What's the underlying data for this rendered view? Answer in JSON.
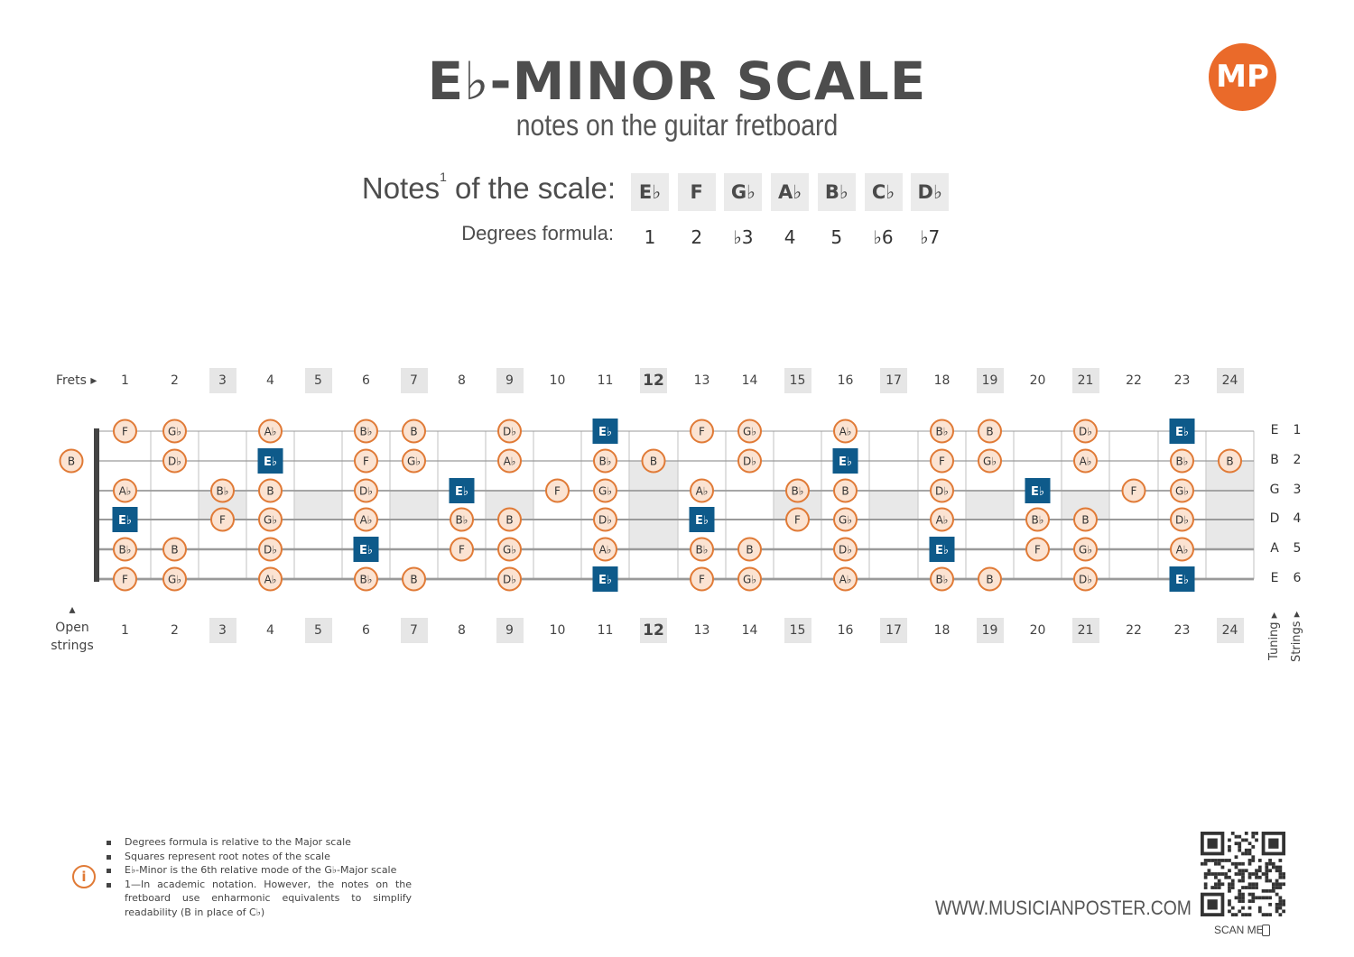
{
  "title": "E♭-MINOR SCALE",
  "subtitle": "notes on the guitar fretboard",
  "logo": "MP",
  "notes_label": "Notes",
  "notes_label_sup": "1",
  "notes_label_rest": " of the scale:",
  "degrees_label": "Degrees formula:",
  "scale_notes": [
    "E♭",
    "F",
    "G♭",
    "A♭",
    "B♭",
    "C♭",
    "D♭"
  ],
  "degrees": [
    "1",
    "2",
    "♭3",
    "4",
    "5",
    "♭6",
    "♭7"
  ],
  "frets_label": "Frets ▸",
  "open_strings_label": [
    "▴",
    "Open",
    "strings"
  ],
  "fret_numbers": [
    "1",
    "2",
    "3",
    "4",
    "5",
    "6",
    "7",
    "8",
    "9",
    "10",
    "11",
    "12",
    "13",
    "14",
    "15",
    "16",
    "17",
    "18",
    "19",
    "20",
    "21",
    "22",
    "23",
    "24"
  ],
  "highlighted_frets": [
    3,
    5,
    7,
    9,
    12,
    15,
    17,
    19,
    21,
    24
  ],
  "bold_fret": 12,
  "tuning": [
    "E",
    "B",
    "G",
    "D",
    "A",
    "E"
  ],
  "string_numbers": [
    "1",
    "2",
    "3",
    "4",
    "5",
    "6"
  ],
  "tuning_label": "Tuning ▸",
  "strings_label": "Strings ▸",
  "fretboard": [
    {
      "string": 1,
      "notes": {
        "1": "F",
        "2": "Gb",
        "4": "Ab",
        "6": "Bb",
        "7": "B",
        "9": "Db",
        "11": "Eb",
        "13": "F",
        "14": "Gb",
        "16": "Ab",
        "18": "Bb",
        "19": "B",
        "21": "Db",
        "23": "Eb"
      }
    },
    {
      "string": 2,
      "notes": {
        "0": "B",
        "2": "Db",
        "4": "Eb",
        "6": "F",
        "7": "Gb",
        "9": "Ab",
        "11": "Bb",
        "12": "B",
        "14": "Db",
        "16": "Eb",
        "18": "F",
        "19": "Gb",
        "21": "Ab",
        "23": "Bb",
        "24": "B"
      }
    },
    {
      "string": 3,
      "notes": {
        "1": "Ab",
        "3": "Bb",
        "4": "B",
        "6": "Db",
        "8": "Eb",
        "10": "F",
        "11": "Gb",
        "13": "Ab",
        "15": "Bb",
        "16": "B",
        "18": "Db",
        "20": "Eb",
        "22": "F",
        "23": "Gb"
      }
    },
    {
      "string": 4,
      "notes": {
        "1": "Eb",
        "3": "F",
        "4": "Gb",
        "6": "Ab",
        "8": "Bb",
        "9": "B",
        "11": "Db",
        "13": "Eb",
        "15": "F",
        "16": "Gb",
        "18": "Ab",
        "20": "Bb",
        "21": "B",
        "23": "Db"
      }
    },
    {
      "string": 5,
      "notes": {
        "1": "Bb",
        "2": "B",
        "4": "Db",
        "6": "Eb",
        "8": "F",
        "9": "Gb",
        "11": "Ab",
        "13": "Bb",
        "14": "B",
        "16": "Db",
        "18": "Eb",
        "20": "F",
        "21": "Gb",
        "23": "Ab"
      }
    },
    {
      "string": 6,
      "notes": {
        "1": "F",
        "2": "Gb",
        "4": "Ab",
        "6": "Bb",
        "7": "B",
        "9": "Db",
        "11": "Eb",
        "13": "F",
        "14": "Gb",
        "16": "Ab",
        "18": "Bb",
        "19": "B",
        "21": "Db",
        "23": "Eb"
      }
    }
  ],
  "root_note": "Eb",
  "footnotes": [
    "Degrees formula is relative to the Major scale",
    "Squares represent root notes of the scale",
    "E♭-Minor is the 6th relative mode of the G♭-Major scale",
    "1—In academic notation. However, the notes on the fretboard use enharmonic equivalents to simplify readability (B in place of C♭)"
  ],
  "website": "WWW.MUSICIANPOSTER.COM",
  "scan_me": "SCAN ME",
  "colors": {
    "accent": "#e07a36",
    "root": "#0e5a8a",
    "note_fill": "#fbe3d2",
    "inlay": "#e8e8e8"
  }
}
